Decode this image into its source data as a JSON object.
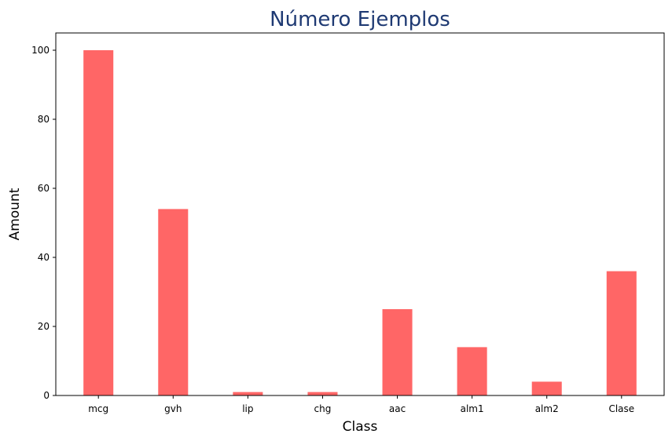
{
  "chart_data": {
    "type": "bar",
    "title": "Número Ejemplos",
    "xlabel": "Class",
    "ylabel": "Amount",
    "categories": [
      "mcg",
      "gvh",
      "lip",
      "chg",
      "aac",
      "alm1",
      "alm2",
      "Clase"
    ],
    "values": [
      100,
      54,
      1,
      1,
      25,
      14,
      4,
      36
    ],
    "ylim": [
      0,
      105
    ],
    "yticks": [
      "0",
      "20",
      "40",
      "60",
      "80",
      "100"
    ],
    "grid": false,
    "bar_color": "#ff6666",
    "title_color": "#1f3a73"
  }
}
